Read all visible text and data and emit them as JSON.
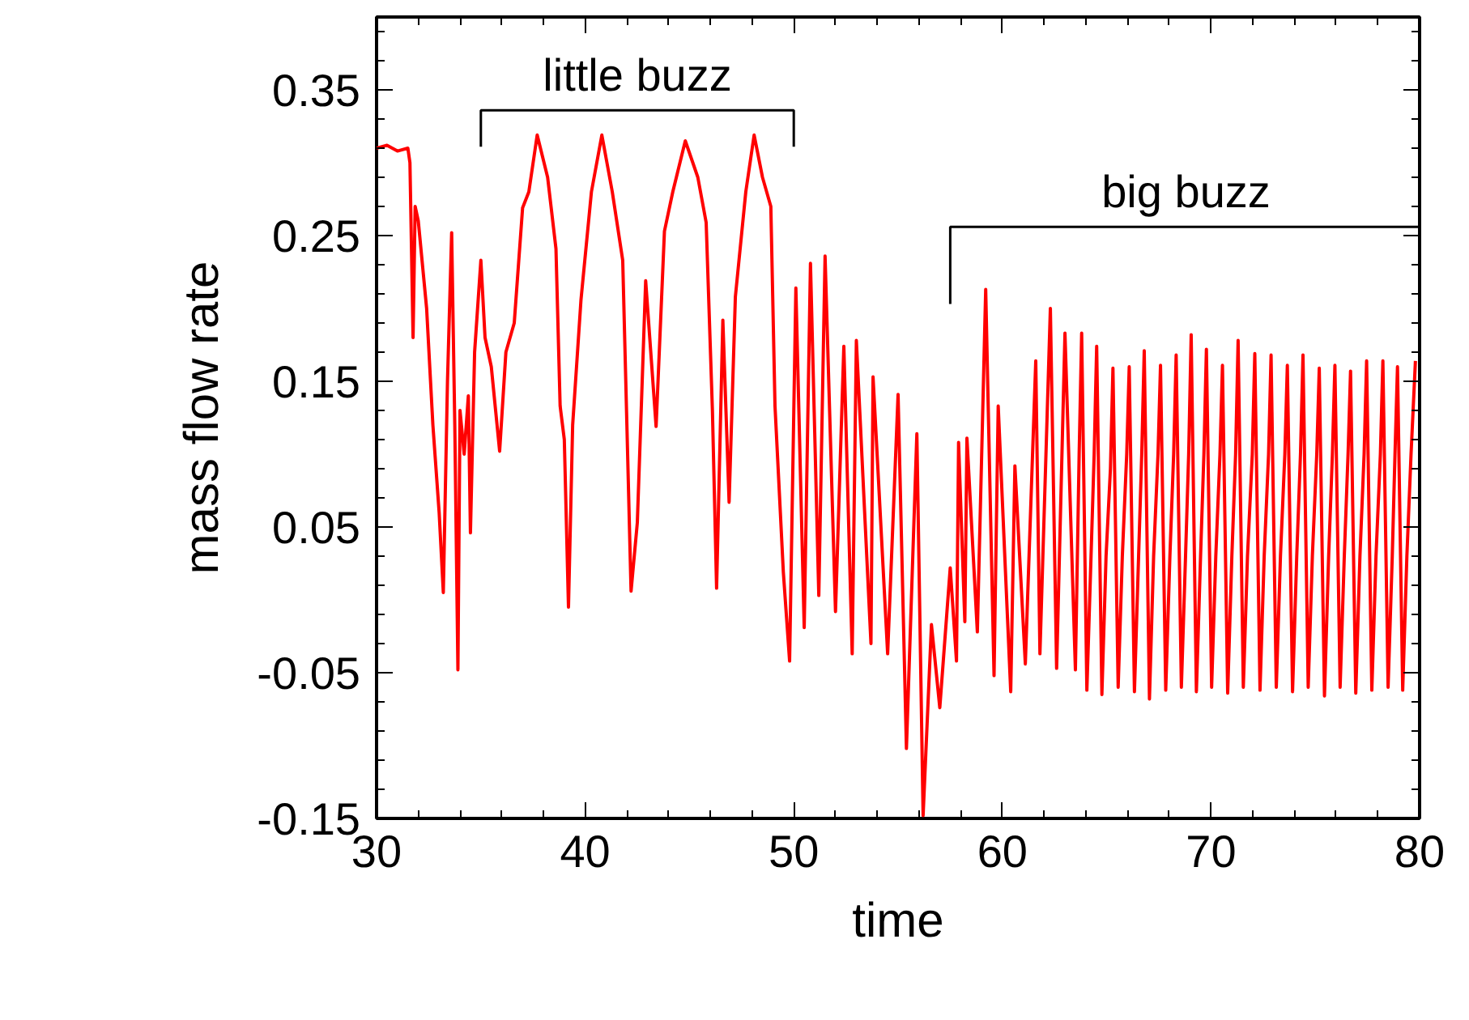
{
  "chart_data": {
    "type": "line",
    "xlabel": "time",
    "ylabel": "mass flow rate",
    "xlim": [
      30,
      80
    ],
    "ylim": [
      -0.15,
      0.4
    ],
    "xticks": [
      30,
      40,
      50,
      60,
      70,
      80
    ],
    "yticks": [
      -0.15,
      -0.05,
      0.05,
      0.15,
      0.25,
      0.35
    ],
    "grid": false,
    "marker": "none",
    "line_style": "solid",
    "annotations": [
      "little buzz",
      "big buzz"
    ],
    "series": [
      {
        "color": "#ff0000",
        "x": [
          30,
          30.5,
          31,
          31.5,
          31.6,
          31.75,
          31.85,
          32.0,
          32.4,
          32.7,
          33.0,
          33.2,
          33.4,
          33.6,
          33.75,
          33.9,
          34.0,
          34.2,
          34.4,
          34.5,
          34.7,
          35.0,
          35.2,
          35.5,
          35.9,
          36.2,
          36.6,
          37.0,
          37.3,
          37.7,
          38.2,
          38.6,
          38.8,
          39.0,
          39.2,
          39.4,
          39.8,
          40.3,
          40.8,
          41.3,
          41.8,
          42.0,
          42.2,
          42.5,
          42.9,
          43.4,
          43.8,
          44.2,
          44.8,
          45.4,
          45.8,
          46.1,
          46.3,
          46.6,
          46.9,
          47.2,
          47.7,
          48.1,
          48.5,
          48.9,
          49.1,
          49.5,
          49.8,
          50.1,
          50.5,
          50.8,
          51.2,
          51.5,
          52.0,
          52.4,
          52.8,
          53.0,
          53.7,
          53.8,
          54.5,
          55.0,
          55.4,
          55.9,
          56.2,
          56.6,
          57.0,
          57.5,
          57.8,
          57.9,
          58.2,
          58.3,
          58.8,
          59.2,
          59.6,
          59.8,
          60.4,
          60.6,
          61.1,
          61.6,
          61.8,
          62.3,
          62.6,
          63.0,
          63.5,
          63.68,
          63.8,
          64.05,
          64.25,
          64.4,
          64.52,
          64.77,
          64.97,
          65.18,
          65.3,
          65.55,
          65.75,
          65.96,
          66.08,
          66.33,
          66.53,
          66.68,
          66.8,
          67.05,
          67.25,
          67.46,
          67.58,
          67.83,
          68.03,
          68.21,
          68.33,
          68.58,
          68.78,
          68.93,
          69.05,
          69.3,
          69.5,
          69.66,
          69.78,
          70.03,
          70.23,
          70.43,
          70.55,
          70.8,
          71.0,
          71.18,
          71.3,
          71.55,
          71.75,
          71.98,
          72.1,
          72.35,
          72.55,
          72.76,
          72.88,
          73.13,
          73.33,
          73.54,
          73.66,
          73.91,
          74.11,
          74.29,
          74.41,
          74.66,
          74.86,
          75.07,
          75.19,
          75.44,
          75.64,
          75.82,
          75.94,
          76.19,
          76.39,
          76.57,
          76.69,
          76.94,
          77.14,
          77.34,
          77.46,
          77.71,
          77.91,
          78.12,
          78.24,
          78.49,
          78.69,
          78.82,
          78.94,
          79.19,
          79.39,
          79.59,
          79.8
        ],
        "values": [
          0.31,
          0.312,
          0.308,
          0.31,
          0.3,
          0.18,
          0.27,
          0.26,
          0.2,
          0.12,
          0.06,
          0.005,
          0.15,
          0.252,
          0.12,
          -0.048,
          0.13,
          0.1,
          0.14,
          0.046,
          0.17,
          0.233,
          0.18,
          0.16,
          0.102,
          0.17,
          0.19,
          0.269,
          0.28,
          0.319,
          0.29,
          0.241,
          0.133,
          0.11,
          -0.005,
          0.12,
          0.206,
          0.28,
          0.319,
          0.28,
          0.233,
          0.12,
          0.006,
          0.053,
          0.219,
          0.119,
          0.253,
          0.28,
          0.315,
          0.29,
          0.259,
          0.13,
          0.008,
          0.192,
          0.067,
          0.208,
          0.28,
          0.319,
          0.29,
          0.27,
          0.133,
          0.019,
          -0.042,
          0.214,
          -0.019,
          0.231,
          0.003,
          0.236,
          -0.008,
          0.174,
          -0.037,
          0.178,
          -0.03,
          0.153,
          -0.037,
          0.141,
          -0.102,
          0.114,
          -0.148,
          -0.017,
          -0.074,
          0.022,
          -0.042,
          0.108,
          -0.015,
          0.111,
          -0.022,
          0.213,
          -0.052,
          0.133,
          -0.063,
          0.092,
          -0.044,
          0.164,
          -0.037,
          0.2,
          -0.047,
          0.183,
          -0.048,
          0.1,
          0.183,
          -0.062,
          0.03,
          0.1,
          0.174,
          -0.065,
          0.03,
          0.09,
          0.159,
          -0.06,
          0.03,
          0.1,
          0.16,
          -0.063,
          0.03,
          0.1,
          0.171,
          -0.068,
          0.03,
          0.1,
          0.161,
          -0.062,
          0.03,
          0.1,
          0.168,
          -0.06,
          0.03,
          0.1,
          0.182,
          -0.063,
          0.03,
          0.1,
          0.172,
          -0.06,
          0.03,
          0.1,
          0.161,
          -0.064,
          0.03,
          0.1,
          0.178,
          -0.06,
          0.03,
          0.1,
          0.169,
          -0.062,
          0.03,
          0.1,
          0.168,
          -0.06,
          0.03,
          0.1,
          0.161,
          -0.063,
          0.03,
          0.1,
          0.168,
          -0.06,
          0.03,
          0.1,
          0.159,
          -0.066,
          0.03,
          0.1,
          0.161,
          -0.06,
          0.03,
          0.1,
          0.157,
          -0.064,
          0.03,
          0.1,
          0.164,
          -0.062,
          0.03,
          0.1,
          0.164,
          -0.06,
          0.03,
          0.1,
          0.16,
          -0.062,
          0.03,
          0.1,
          0.164
        ]
      }
    ]
  }
}
